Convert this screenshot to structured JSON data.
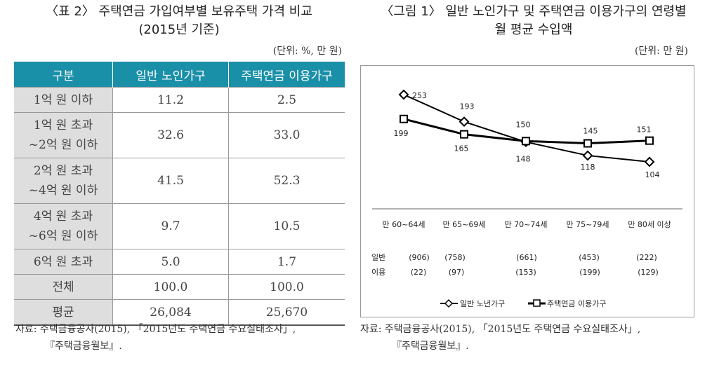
{
  "table": {
    "title": "〈표 2〉 주택연금 가입여부별 보유주택 가격 비교",
    "subtitle": "(2015년 기준)",
    "unit": "(단위: %, 만 원)",
    "headers": [
      "구분",
      "일반 노인가구",
      "주택연금 이용가구"
    ],
    "rows": [
      {
        "label": [
          "1억 원 이하"
        ],
        "general": "11.2",
        "pension": "2.5"
      },
      {
        "label": [
          "1억 원 초과",
          "~2억 원 이하"
        ],
        "general": "32.6",
        "pension": "33.0"
      },
      {
        "label": [
          "2억 원 초과",
          "~4억 원 이하"
        ],
        "general": "41.5",
        "pension": "52.3"
      },
      {
        "label": [
          "4억 원 초과",
          "~6억 원 이하"
        ],
        "general": "9.7",
        "pension": "10.5"
      },
      {
        "label": [
          "6억 원 초과"
        ],
        "general": "5.0",
        "pension": "1.7"
      },
      {
        "label": [
          "전체"
        ],
        "general": "100.0",
        "pension": "100.0"
      },
      {
        "label": [
          "평균"
        ],
        "general": "26,084",
        "pension": "25,670"
      }
    ],
    "source": [
      "자료: 주택금융공사(2015), 「2015년도 주택연금 수요실태조사」,",
      "『주택금융월보』."
    ]
  },
  "figure": {
    "title": "〈그림 1〉 일반 노인가구 및 주택연금 이용가구의 연령별",
    "title2": "월 평균 수입액",
    "unit": "(단위: 만 원)",
    "source": [
      "자료: 주택금융공사(2015), 「2015년도 주택연금 수요실태조사」,",
      "『주택금융월보』."
    ]
  },
  "chart_data": {
    "type": "line",
    "categories": [
      "만 60~64세",
      "만 65~69세",
      "만 70~74세",
      "만 75~79세",
      "만 80세 이상"
    ],
    "series": [
      {
        "name": "일반 노년가구",
        "marker": "diamond",
        "values": [
          253,
          193,
          148,
          118,
          104
        ]
      },
      {
        "name": "주택연금 이용가구",
        "marker": "square",
        "values": [
          199,
          165,
          150,
          145,
          151
        ]
      }
    ],
    "counts": [
      {
        "label": "일반",
        "values": [
          "(906)",
          "(758)",
          "(661)",
          "(453)",
          "(222)"
        ]
      },
      {
        "label": "이용",
        "values": [
          "(22)",
          "(97)",
          "(153)",
          "(199)",
          "(129)"
        ]
      }
    ],
    "legend": "bottom"
  }
}
